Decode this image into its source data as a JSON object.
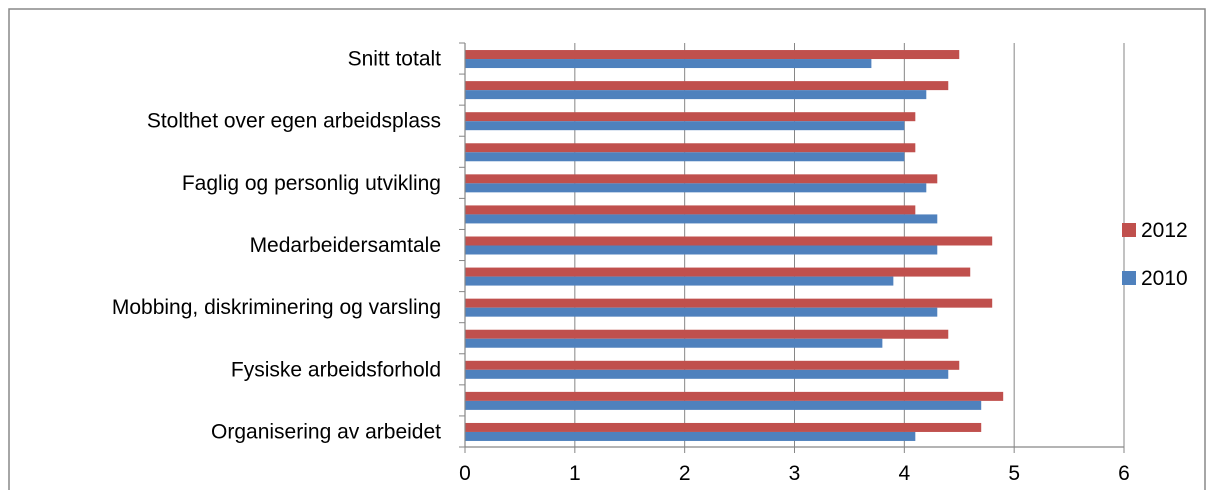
{
  "chart_data": {
    "type": "bar",
    "orientation": "horizontal",
    "categories": [
      "Snitt totalt",
      "",
      "Stolthet over egen arbeidsplass",
      "",
      "Faglig og personlig utvikling",
      "",
      "Medarbeidersamtale",
      "",
      "Mobbing, diskriminering og varsling",
      "",
      "Fysiske arbeidsforhold",
      "",
      "Organisering av arbeidet"
    ],
    "series": [
      {
        "name": "2012",
        "color": "#c0504d",
        "values": [
          4.5,
          4.4,
          4.1,
          4.1,
          4.3,
          4.1,
          4.8,
          4.6,
          4.8,
          4.4,
          4.5,
          4.9,
          4.7
        ]
      },
      {
        "name": "2010",
        "color": "#4f81bd",
        "values": [
          3.7,
          4.2,
          4.0,
          4.0,
          4.2,
          4.3,
          4.3,
          3.9,
          4.3,
          3.8,
          4.4,
          4.7,
          4.1
        ]
      }
    ],
    "xlim": [
      0,
      6
    ],
    "xticks": [
      "0",
      "1",
      "2",
      "3",
      "4",
      "5",
      "6"
    ],
    "grid": "vertical major",
    "legend": "right",
    "title": "",
    "xlabel": "",
    "ylabel": ""
  }
}
